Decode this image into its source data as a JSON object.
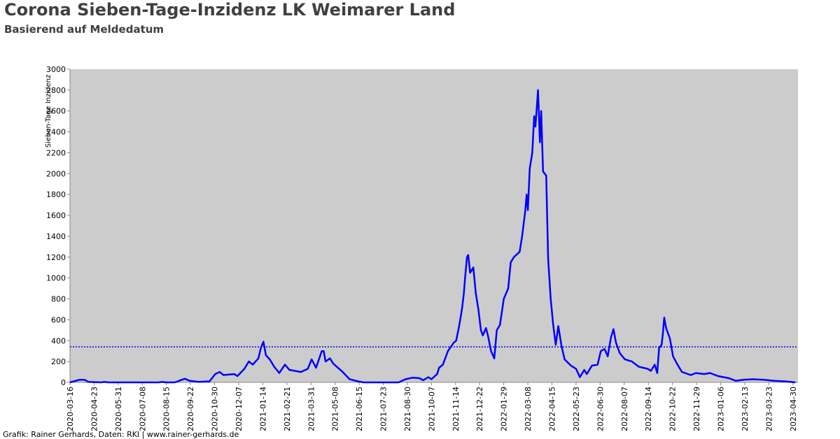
{
  "chart_data": {
    "type": "line",
    "title": "Corona Sieben-Tage-Inzidenz LK Weimarer Land",
    "subtitle": "Basierend auf Meldedatum",
    "y_label": "Sieben-Tage Inzidenz",
    "footer": "Grafik: Rainer Gerhards, Daten: RKI | www.rainer-gerhards.de",
    "color": "#0000ff",
    "background": "#cccccc",
    "reference_line": 340,
    "x": [
      "2020-03-16",
      "2020-03-31",
      "2020-04-08",
      "2020-04-14",
      "2020-05-04",
      "2020-05-09",
      "2020-05-15",
      "2020-08-03",
      "2020-08-08",
      "2020-08-14",
      "2020-08-28",
      "2020-09-13",
      "2020-09-21",
      "2020-10-05",
      "2020-10-22",
      "2020-10-31",
      "2020-11-07",
      "2020-11-13",
      "2020-11-30",
      "2020-12-05",
      "2020-12-16",
      "2020-12-23",
      "2020-12-29",
      "2021-01-07",
      "2021-01-11",
      "2021-01-15",
      "2021-01-19",
      "2021-01-25",
      "2021-02-01",
      "2021-02-09",
      "2021-02-18",
      "2021-02-25",
      "2021-03-15",
      "2021-03-26",
      "2021-04-01",
      "2021-04-08",
      "2021-04-17",
      "2021-04-20",
      "2021-04-23",
      "2021-04-30",
      "2021-05-05",
      "2021-05-20",
      "2021-05-31",
      "2021-06-13",
      "2021-06-22",
      "2021-08-16",
      "2021-08-27",
      "2021-09-07",
      "2021-09-18",
      "2021-09-24",
      "2021-10-02",
      "2021-10-07",
      "2021-10-16",
      "2021-10-19",
      "2021-10-25",
      "2021-11-02",
      "2021-11-11",
      "2021-11-15",
      "2021-11-20",
      "2021-11-24",
      "2021-11-27",
      "2021-11-29",
      "2021-12-02",
      "2021-12-04",
      "2021-12-07",
      "2021-12-12",
      "2021-12-16",
      "2021-12-20",
      "2021-12-24",
      "2021-12-27",
      "2022-01-01",
      "2022-01-04",
      "2022-01-09",
      "2022-01-14",
      "2022-01-18",
      "2022-01-23",
      "2022-01-29",
      "2022-02-05",
      "2022-02-09",
      "2022-02-14",
      "2022-02-23",
      "2022-02-27",
      "2022-03-04",
      "2022-03-06",
      "2022-03-08",
      "2022-03-11",
      "2022-03-15",
      "2022-03-18",
      "2022-03-20",
      "2022-03-24",
      "2022-03-27",
      "2022-03-29",
      "2022-04-01",
      "2022-04-06",
      "2022-04-09",
      "2022-04-13",
      "2022-04-17",
      "2022-04-21",
      "2022-04-25",
      "2022-04-30",
      "2022-05-05",
      "2022-05-15",
      "2022-05-23",
      "2022-05-29",
      "2022-06-05",
      "2022-06-09",
      "2022-06-17",
      "2022-06-26",
      "2022-07-01",
      "2022-07-07",
      "2022-07-12",
      "2022-07-17",
      "2022-07-21",
      "2022-07-25",
      "2022-07-31",
      "2022-08-08",
      "2022-08-19",
      "2022-08-30",
      "2022-09-13",
      "2022-09-18",
      "2022-09-24",
      "2022-09-28",
      "2022-10-01",
      "2022-10-05",
      "2022-10-07",
      "2022-10-09",
      "2022-10-12",
      "2022-10-18",
      "2022-10-23",
      "2022-10-29",
      "2022-11-06",
      "2022-11-20",
      "2022-11-28",
      "2022-12-11",
      "2022-12-20",
      "2023-01-02",
      "2023-01-19",
      "2023-01-30",
      "2023-02-11",
      "2023-02-26",
      "2023-03-15",
      "2023-03-31",
      "2023-04-17",
      "2023-05-04"
    ],
    "values": [
      0,
      25,
      25,
      5,
      0,
      5,
      0,
      0,
      5,
      0,
      0,
      35,
      15,
      5,
      10,
      80,
      100,
      70,
      80,
      60,
      130,
      200,
      170,
      230,
      330,
      390,
      260,
      220,
      150,
      90,
      170,
      120,
      100,
      130,
      220,
      140,
      300,
      300,
      200,
      230,
      180,
      100,
      30,
      10,
      0,
      0,
      30,
      45,
      40,
      20,
      50,
      30,
      80,
      140,
      170,
      300,
      380,
      400,
      550,
      700,
      850,
      1000,
      1200,
      1220,
      1050,
      1100,
      850,
      700,
      500,
      450,
      520,
      450,
      300,
      230,
      500,
      550,
      800,
      900,
      1150,
      1200,
      1250,
      1400,
      1650,
      1800,
      1650,
      2050,
      2200,
      2550,
      2450,
      2800,
      2300,
      2600,
      2020,
      1980,
      1180,
      800,
      550,
      360,
      540,
      350,
      220,
      160,
      130,
      50,
      120,
      80,
      160,
      170,
      300,
      320,
      250,
      430,
      510,
      380,
      280,
      220,
      200,
      150,
      130,
      110,
      170,
      90,
      330,
      360,
      470,
      620,
      520,
      420,
      250,
      180,
      100,
      70,
      90,
      80,
      90,
      60,
      40,
      15,
      25,
      30,
      25,
      15,
      10,
      0
    ],
    "xlim": [
      "2020-03-16",
      "2023-05-08"
    ],
    "xticks": [
      "2020-03-16",
      "2020-04-23",
      "2020-05-31",
      "2020-07-08",
      "2020-08-15",
      "2020-09-22",
      "2020-10-30",
      "2020-12-07",
      "2021-01-14",
      "2021-02-21",
      "2021-03-31",
      "2021-05-08",
      "2021-06-15",
      "2021-07-23",
      "2021-08-30",
      "2021-10-07",
      "2021-11-14",
      "2021-12-22",
      "2022-01-29",
      "2022-03-08",
      "2022-04-15",
      "2022-05-23",
      "2022-06-30",
      "2022-08-07",
      "2022-09-14",
      "2022-10-22",
      "2022-11-29",
      "2023-01-06",
      "2023-02-13",
      "2023-03-23",
      "2023-04-30"
    ],
    "ylim": [
      0,
      3000
    ],
    "yticks": [
      0,
      200,
      400,
      600,
      800,
      1000,
      1200,
      1400,
      1600,
      1800,
      2000,
      2200,
      2400,
      2600,
      2800,
      3000
    ]
  }
}
